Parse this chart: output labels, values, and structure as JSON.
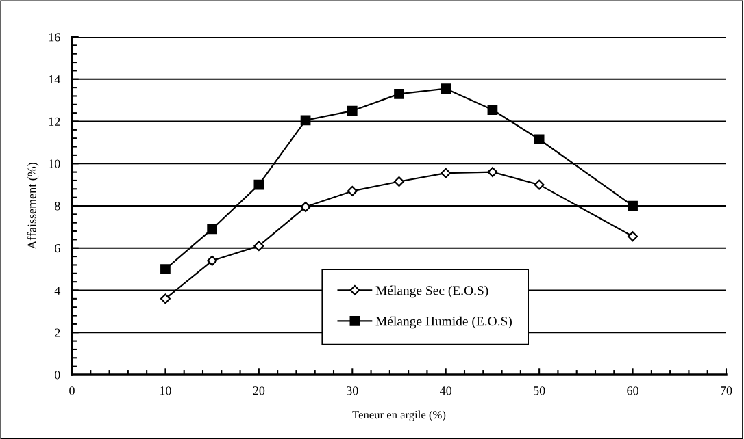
{
  "chart_data": {
    "type": "line",
    "xlabel": "Teneur en argile (%)",
    "ylabel": "Affaissement (%)",
    "x": [
      10,
      15,
      20,
      25,
      30,
      35,
      40,
      45,
      50,
      60
    ],
    "series": [
      {
        "name": "Mélange Sec (E.O.S)",
        "color": "#000000",
        "marker": "diamond",
        "values": [
          3.6,
          5.4,
          6.1,
          7.95,
          8.7,
          9.15,
          9.55,
          9.6,
          9.0,
          6.55
        ]
      },
      {
        "name": "Mélange Humide (E.O.S)",
        "color": "#000000",
        "marker": "square",
        "values": [
          5.0,
          6.9,
          9.0,
          12.05,
          12.5,
          13.3,
          13.55,
          12.55,
          11.15,
          8.0
        ]
      }
    ],
    "xlim": [
      0,
      70
    ],
    "xticks": [
      0,
      10,
      20,
      30,
      40,
      50,
      60,
      70
    ],
    "ylim": [
      0,
      16
    ],
    "yticks": [
      0,
      2,
      4,
      6,
      8,
      10,
      12,
      14,
      16
    ],
    "grid": "y",
    "legend": "bottom",
    "line_style": "solid"
  }
}
